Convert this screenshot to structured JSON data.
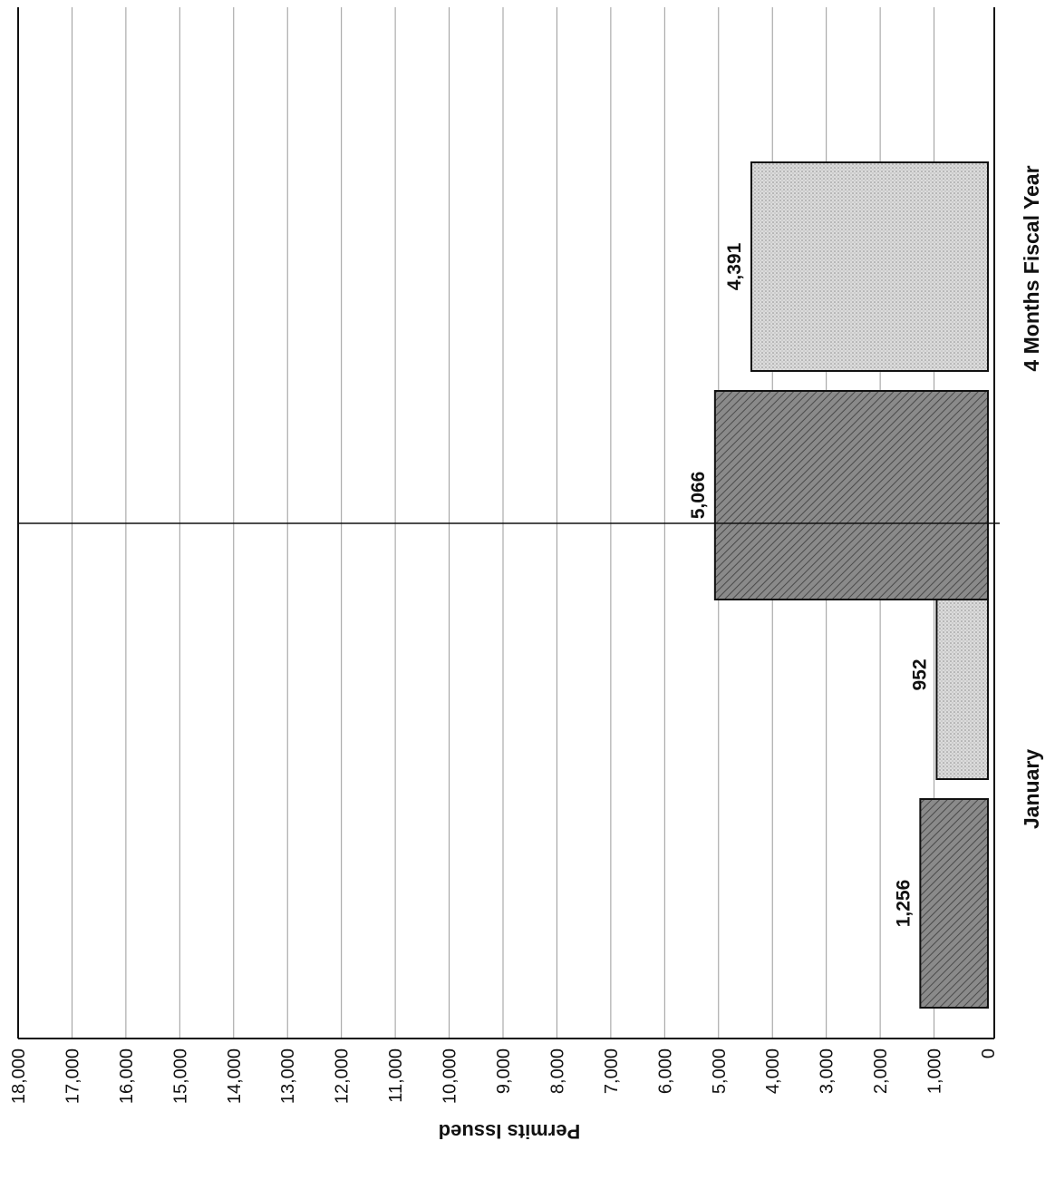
{
  "chart_data": {
    "type": "bar",
    "orientation": "rotated",
    "title": "",
    "xlabel": "",
    "ylabel": "Permits Issued",
    "ylim": [
      0,
      18000
    ],
    "y_ticks": [
      0,
      1000,
      2000,
      3000,
      4000,
      5000,
      6000,
      7000,
      8000,
      9000,
      10000,
      11000,
      12000,
      13000,
      14000,
      15000,
      16000,
      17000,
      18000
    ],
    "y_tick_labels": [
      "0",
      "1,000",
      "2,000",
      "3,000",
      "4,000",
      "5,000",
      "6,000",
      "7,000",
      "8,000",
      "9,000",
      "10,000",
      "11,000",
      "12,000",
      "13,000",
      "14,000",
      "15,000",
      "16,000",
      "17,000",
      "18,000"
    ],
    "categories": [
      "January",
      "4 Months Fiscal Year"
    ],
    "grid": true,
    "legend": "none",
    "series": [
      {
        "values": [
          1256,
          5066
        ],
        "value_labels": [
          "1,256",
          "5,066"
        ],
        "pattern": "dark-hatch",
        "color": "#8a8a8a"
      },
      {
        "values": [
          952,
          4391
        ],
        "value_labels": [
          "952",
          "4,391"
        ],
        "pattern": "light-stipple",
        "color": "#d6d6d6"
      }
    ]
  }
}
